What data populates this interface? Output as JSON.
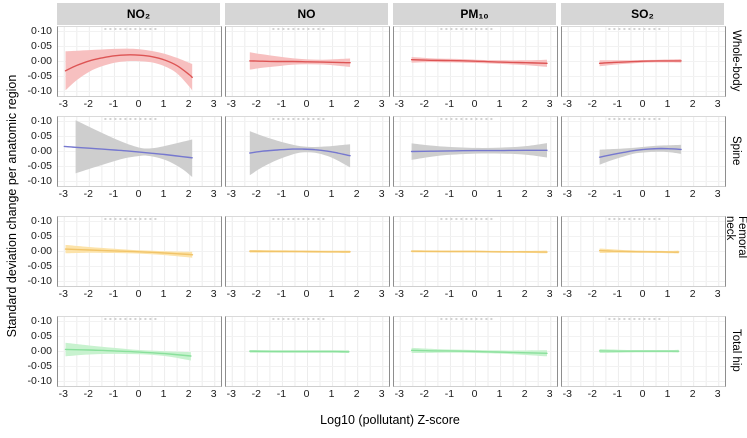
{
  "chart_data": {
    "type": "line",
    "title": "",
    "x_label": "Log10 (pollutant) Z-score",
    "y_label": "Standard deviation change per anatomic region",
    "xlim": [
      -3.25,
      3.25
    ],
    "ylim": [
      -0.115,
      0.115
    ],
    "x_ticks": [
      "-3",
      "-2",
      "-1",
      "0",
      "1",
      "2",
      "3"
    ],
    "x_tick_values": [
      -3,
      -2,
      -1,
      0,
      1,
      2,
      3
    ],
    "y_ticks": [
      "0·10",
      "0·05",
      "0·00",
      "-0·05",
      "-0·10"
    ],
    "y_tick_values": [
      0.1,
      0.05,
      0.0,
      -0.05,
      -0.1
    ],
    "grid": "light minor verticals every 0.5, light horizontals at y ticks",
    "legend_position": "none",
    "header_bg": "#d6d6d6",
    "columns": [
      "NO₂",
      "NO",
      "PM₁₀",
      "SO₂"
    ],
    "rows": [
      {
        "label": "Whole-body",
        "line_color": "#dd5454",
        "band_color": "#f7c0c0"
      },
      {
        "label": "Spine",
        "line_color": "#7678cf",
        "band_color": "#cecece"
      },
      {
        "label": "Femoral neck",
        "line_color": "#f1c469",
        "band_color": "#fce3aa"
      },
      {
        "label": "Total hip",
        "line_color": "#8ae09c",
        "band_color": "#c8f2cf"
      }
    ],
    "rug": {
      "x_start": -1.4,
      "x_end": 0.7
    },
    "panels": [
      [
        {
          "x": [
            -2.95,
            -2.5,
            -2,
            -1.5,
            -1,
            -0.5,
            0,
            0.5,
            1,
            1.5,
            2,
            2.1
          ],
          "y": [
            -0.031,
            -0.013,
            0.002,
            0.012,
            0.019,
            0.022,
            0.021,
            0.016,
            0.005,
            -0.014,
            -0.045,
            -0.053
          ],
          "hi": [
            0.034,
            0.036,
            0.038,
            0.04,
            0.042,
            0.043,
            0.041,
            0.035,
            0.026,
            0.012,
            -0.005,
            -0.008
          ],
          "lo": [
            -0.096,
            -0.062,
            -0.034,
            -0.016,
            -0.004,
            0.001,
            0.001,
            -0.003,
            -0.016,
            -0.04,
            -0.085,
            -0.098
          ]
        },
        {
          "x": [
            -2.3,
            -1.8,
            -1.2,
            -0.6,
            0,
            0.6,
            1.2,
            1.7
          ],
          "y": [
            0.002,
            0.001,
            0.0,
            0.0,
            -0.001,
            -0.002,
            -0.003,
            -0.004
          ],
          "hi": [
            0.031,
            0.024,
            0.017,
            0.011,
            0.007,
            0.006,
            0.008,
            0.01
          ],
          "lo": [
            -0.027,
            -0.021,
            -0.016,
            -0.011,
            -0.009,
            -0.01,
            -0.014,
            -0.018
          ]
        },
        {
          "x": [
            -2.55,
            -1.8,
            -1,
            0,
            1,
            2,
            2.85
          ],
          "y": [
            0.006,
            0.004,
            0.003,
            0.001,
            -0.002,
            -0.004,
            -0.006
          ],
          "hi": [
            0.015,
            0.011,
            0.009,
            0.006,
            0.004,
            0.004,
            0.006
          ],
          "lo": [
            -0.004,
            -0.002,
            -0.003,
            -0.005,
            -0.008,
            -0.012,
            -0.018
          ]
        },
        {
          "x": [
            -1.75,
            -1.2,
            -0.6,
            0,
            0.6,
            1.1,
            1.5
          ],
          "y": [
            -0.006,
            -0.003,
            -0.001,
            0.001,
            0.002,
            0.002,
            0.002
          ],
          "hi": [
            0.004,
            0.004,
            0.004,
            0.005,
            0.006,
            0.007,
            0.008
          ],
          "lo": [
            -0.016,
            -0.011,
            -0.007,
            -0.004,
            -0.003,
            -0.003,
            -0.004
          ]
        }
      ],
      [
        {
          "x": [
            -3,
            -2.55,
            -2,
            -1.5,
            -1,
            -0.5,
            0,
            0.5,
            1,
            1.5,
            2,
            2.1
          ],
          "y": [
            0.017,
            0.014,
            0.011,
            0.008,
            0.005,
            0.002,
            -0.002,
            -0.006,
            -0.01,
            -0.015,
            -0.02,
            -0.021
          ],
          "band_x": [
            -2.55,
            -2,
            -1.5,
            -1,
            -0.5,
            0,
            0.3,
            0.7,
            1.2,
            1.7,
            2.1
          ],
          "hi": [
            0.104,
            0.082,
            0.062,
            0.043,
            0.026,
            0.013,
            0.01,
            0.013,
            0.022,
            0.032,
            0.04
          ],
          "lo": [
            -0.073,
            -0.058,
            -0.045,
            -0.032,
            -0.021,
            -0.015,
            -0.014,
            -0.02,
            -0.034,
            -0.058,
            -0.085
          ]
        },
        {
          "x": [
            -2.3,
            -1.8,
            -1.2,
            -0.6,
            -0.2,
            0.3,
            0.8,
            1.2,
            1.7
          ],
          "y": [
            -0.005,
            0.001,
            0.005,
            0.008,
            0.008,
            0.006,
            0.001,
            -0.005,
            -0.014
          ],
          "hi": [
            0.068,
            0.052,
            0.036,
            0.023,
            0.017,
            0.015,
            0.017,
            0.02,
            0.024
          ],
          "lo": [
            -0.079,
            -0.052,
            -0.028,
            -0.01,
            -0.003,
            -0.004,
            -0.015,
            -0.03,
            -0.053
          ]
        },
        {
          "x": [
            -2.55,
            -1.8,
            -1,
            0,
            1,
            2,
            2.85
          ],
          "y": [
            0.0,
            0.001,
            0.002,
            0.003,
            0.003,
            0.004,
            0.004
          ],
          "hi": [
            0.027,
            0.02,
            0.015,
            0.012,
            0.013,
            0.018,
            0.028
          ],
          "lo": [
            -0.028,
            -0.018,
            -0.011,
            -0.007,
            -0.007,
            -0.011,
            -0.02
          ]
        },
        {
          "x": [
            -1.75,
            -1.3,
            -0.8,
            -0.3,
            0.2,
            0.7,
            1.1,
            1.5
          ],
          "y": [
            -0.019,
            -0.011,
            -0.003,
            0.004,
            0.008,
            0.01,
            0.009,
            0.007
          ],
          "hi": [
            0.006,
            0.008,
            0.01,
            0.013,
            0.017,
            0.02,
            0.021,
            0.022
          ],
          "lo": [
            -0.044,
            -0.03,
            -0.017,
            -0.006,
            -0.002,
            -0.001,
            -0.003,
            -0.008
          ]
        }
      ],
      [
        {
          "x": [
            -2.95,
            -2,
            -1,
            0,
            1,
            2,
            2.1
          ],
          "y": [
            0.008,
            0.005,
            0.002,
            -0.001,
            -0.005,
            -0.01,
            -0.011
          ],
          "hi": [
            0.022,
            0.015,
            0.009,
            0.004,
            0.001,
            -0.001,
            -0.001
          ],
          "lo": [
            -0.006,
            -0.004,
            -0.005,
            -0.007,
            -0.012,
            -0.02,
            -0.022
          ]
        },
        {
          "x": [
            -2.3,
            -1,
            0,
            1,
            1.7
          ],
          "y": [
            0.001,
            0.0,
            0.0,
            -0.001,
            -0.001
          ],
          "hi": [
            0.005,
            0.004,
            0.003,
            0.003,
            0.003
          ],
          "lo": [
            -0.004,
            -0.003,
            -0.004,
            -0.004,
            -0.005
          ]
        },
        {
          "x": [
            -2.55,
            -1,
            0,
            1,
            2,
            2.85
          ],
          "y": [
            0.001,
            0.0,
            0.0,
            -0.001,
            -0.001,
            -0.002
          ],
          "hi": [
            0.004,
            0.003,
            0.003,
            0.002,
            0.002,
            0.003
          ],
          "lo": [
            -0.003,
            -0.003,
            -0.003,
            -0.004,
            -0.005,
            -0.006
          ]
        },
        {
          "x": [
            -1.75,
            -1.2,
            -0.6,
            0,
            0.6,
            1.1,
            1.4
          ],
          "y": [
            0.003,
            0.001,
            0.0,
            -0.001,
            -0.001,
            -0.002,
            -0.002
          ],
          "hi": [
            0.01,
            0.007,
            0.004,
            0.003,
            0.002,
            0.002,
            0.003
          ],
          "lo": [
            -0.005,
            -0.004,
            -0.004,
            -0.004,
            -0.005,
            -0.006,
            -0.007
          ]
        }
      ],
      [
        {
          "x": [
            -2.95,
            -2,
            -1,
            0,
            1,
            2.05
          ],
          "y": [
            0.007,
            0.005,
            0.002,
            -0.002,
            -0.007,
            -0.015
          ],
          "hi": [
            0.029,
            0.02,
            0.012,
            0.005,
            0.001,
            -0.002
          ],
          "lo": [
            -0.016,
            -0.01,
            -0.008,
            -0.009,
            -0.015,
            -0.03
          ]
        },
        {
          "x": [
            -2.3,
            -1,
            0,
            1,
            1.65
          ],
          "y": [
            0.001,
            0.0,
            0.0,
            0.0,
            -0.001
          ],
          "hi": [
            0.005,
            0.004,
            0.004,
            0.004,
            0.004
          ],
          "lo": [
            -0.004,
            -0.004,
            -0.004,
            -0.004,
            -0.005
          ]
        },
        {
          "x": [
            -2.55,
            -1.5,
            -0.5,
            0.5,
            1.5,
            2.85
          ],
          "y": [
            0.004,
            0.002,
            0.001,
            -0.001,
            -0.003,
            -0.006
          ],
          "hi": [
            0.012,
            0.008,
            0.006,
            0.004,
            0.003,
            0.004
          ],
          "lo": [
            -0.005,
            -0.004,
            -0.004,
            -0.006,
            -0.009,
            -0.016
          ]
        },
        {
          "x": [
            -1.75,
            -1,
            -0.3,
            0.4,
            1,
            1.4
          ],
          "y": [
            0.002,
            0.001,
            0.001,
            0.001,
            0.001,
            0.001
          ],
          "hi": [
            0.008,
            0.006,
            0.005,
            0.005,
            0.005,
            0.006
          ],
          "lo": [
            -0.005,
            -0.004,
            -0.003,
            -0.003,
            -0.003,
            -0.004
          ]
        }
      ]
    ]
  }
}
